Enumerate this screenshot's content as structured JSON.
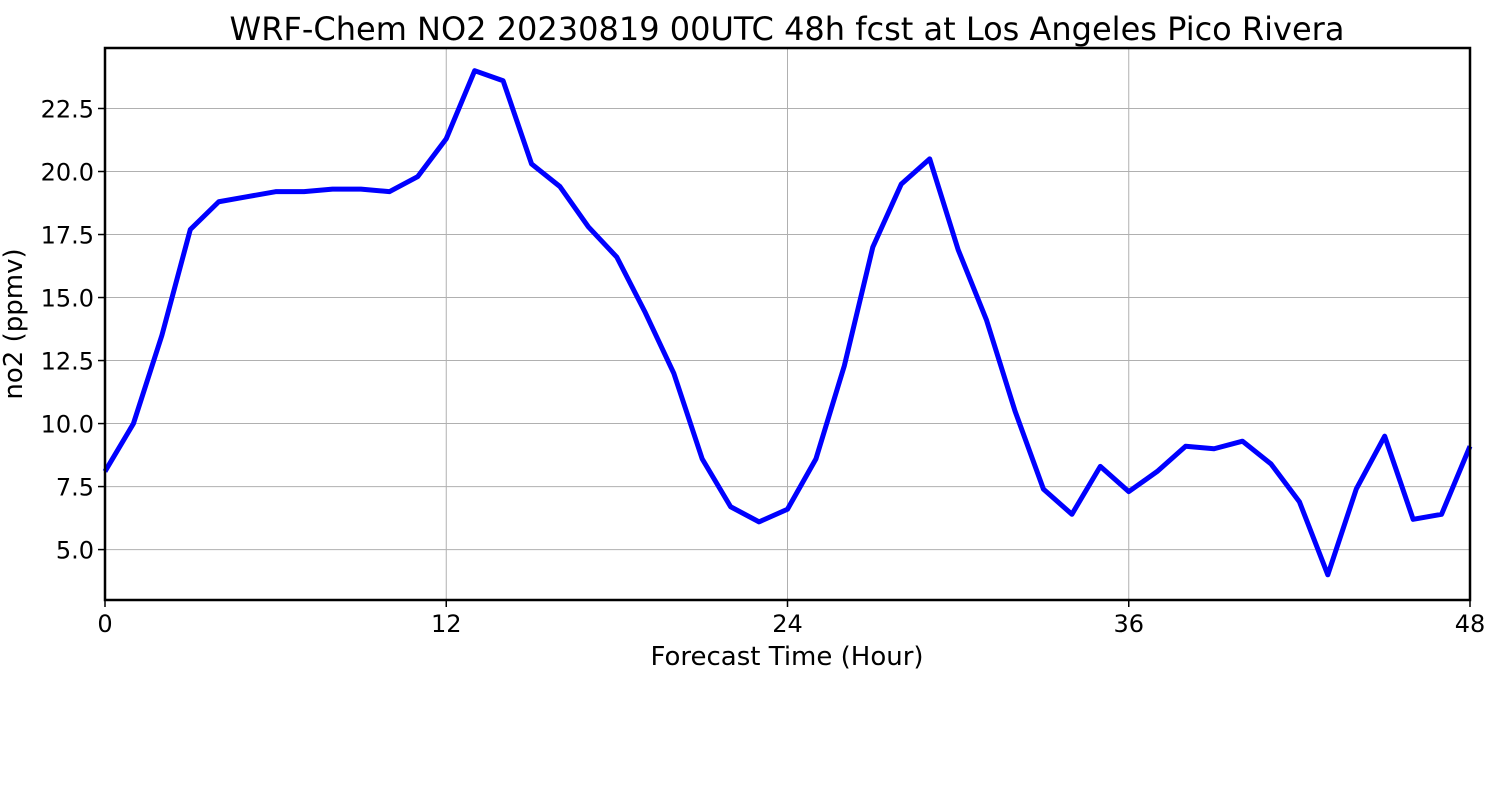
{
  "chart_data": {
    "type": "line",
    "title": "WRF-Chem NO2  20230819 00UTC 48h fcst at Los Angeles Pico Rivera",
    "xlabel": "Forecast Time (Hour)",
    "ylabel": "no2  (ppmv)",
    "xlim": [
      0,
      48
    ],
    "ylim": [
      3.0,
      24.9
    ],
    "xticks": [
      0,
      12,
      24,
      36,
      48
    ],
    "yticks": [
      5.0,
      7.5,
      10.0,
      12.5,
      15.0,
      17.5,
      20.0,
      22.5
    ],
    "ytick_labels": [
      "5.0",
      "7.5",
      "10.0",
      "12.5",
      "15.0",
      "17.5",
      "20.0",
      "22.5"
    ],
    "grid": true,
    "series": [
      {
        "color": "#0000ff",
        "x": [
          0,
          1,
          2,
          3,
          4,
          5,
          6,
          7,
          8,
          9,
          10,
          11,
          12,
          13,
          14,
          15,
          16,
          17,
          18,
          19,
          20,
          21,
          22,
          23,
          24,
          25,
          26,
          27,
          28,
          29,
          30,
          31,
          32,
          33,
          34,
          35,
          36,
          37,
          38,
          39,
          40,
          41,
          42,
          43,
          44,
          45,
          46,
          47,
          48
        ],
        "values": [
          8.1,
          10.0,
          13.5,
          17.7,
          18.8,
          19.0,
          19.2,
          19.2,
          19.3,
          19.3,
          19.2,
          19.8,
          21.3,
          24.0,
          23.6,
          20.3,
          19.4,
          17.8,
          16.6,
          14.4,
          12.0,
          8.6,
          6.7,
          6.1,
          6.6,
          8.6,
          12.3,
          17.0,
          19.5,
          20.5,
          16.9,
          14.1,
          10.5,
          7.4,
          6.4,
          8.3,
          7.3,
          8.1,
          9.1,
          9.0,
          9.3,
          8.4,
          6.9,
          4.0,
          7.4,
          9.5,
          6.2,
          6.4,
          9.1
        ]
      }
    ]
  }
}
